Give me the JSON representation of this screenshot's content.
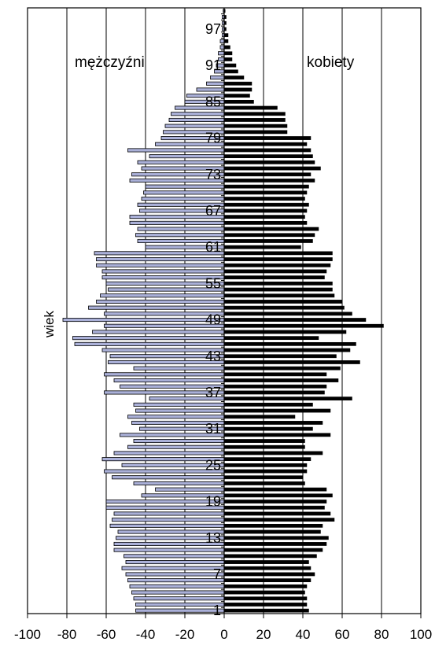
{
  "chart_data": {
    "type": "bar",
    "orientation": "horizontal",
    "title": "",
    "ylabel": "wiek",
    "xlim": [
      -100,
      100
    ],
    "ylim": [
      0,
      100
    ],
    "grid": true,
    "x_ticks": [
      -100,
      -80,
      -60,
      -40,
      -20,
      0,
      20,
      40,
      60,
      80,
      100
    ],
    "x_tick_labels": [
      "-100",
      "-80",
      "-60",
      "-40",
      "-20",
      "0",
      "20",
      "40",
      "60",
      "80",
      "100"
    ],
    "age_tick_labels": [
      "1",
      "7",
      "13",
      "19",
      "25",
      "31",
      "37",
      "43",
      "49",
      "55",
      "61",
      "67",
      "73",
      "79",
      "85",
      "91",
      "97"
    ],
    "ages": [
      1,
      2,
      3,
      4,
      5,
      6,
      7,
      8,
      9,
      10,
      11,
      12,
      13,
      14,
      15,
      16,
      17,
      18,
      19,
      20,
      21,
      22,
      23,
      24,
      25,
      26,
      27,
      28,
      29,
      30,
      31,
      32,
      33,
      34,
      35,
      36,
      37,
      38,
      39,
      40,
      41,
      42,
      43,
      44,
      45,
      46,
      47,
      48,
      49,
      50,
      51,
      52,
      53,
      54,
      55,
      56,
      57,
      58,
      59,
      60,
      61,
      62,
      63,
      64,
      65,
      66,
      67,
      68,
      69,
      70,
      71,
      72,
      73,
      74,
      75,
      76,
      77,
      78,
      79,
      80,
      81,
      82,
      83,
      84,
      85,
      86,
      87,
      88,
      89,
      90,
      91,
      92,
      93,
      94,
      95,
      96,
      97,
      98,
      99,
      100
    ],
    "series": [
      {
        "name": "mężczyźni",
        "color": "#aab0d8",
        "values": [
          -45,
          -45,
          -46,
          -47,
          -48,
          -49,
          -50,
          -52,
          -50,
          -51,
          -56,
          -56,
          -55,
          -54,
          -58,
          -57,
          -56,
          -60,
          -60,
          -42,
          -35,
          -46,
          -57,
          -61,
          -52,
          -62,
          -56,
          -49,
          -46,
          -53,
          -43,
          -47,
          -49,
          -45,
          -46,
          -38,
          -61,
          -53,
          -56,
          -61,
          -46,
          -59,
          -58,
          -62,
          -76,
          -77,
          -67,
          -61,
          -82,
          -61,
          -69,
          -65,
          -63,
          -59,
          -60,
          -62,
          -62,
          -65,
          -65,
          -66,
          -40,
          -44,
          -45,
          -44,
          -48,
          -48,
          -43,
          -44,
          -42,
          -41,
          -40,
          -48,
          -47,
          -42,
          -44,
          -38,
          -49,
          -35,
          -32,
          -31,
          -30,
          -28,
          -27,
          -25,
          -20,
          -19,
          -14,
          -9,
          -7,
          -5,
          -4,
          -3,
          -3,
          -2,
          -2,
          -1,
          -1,
          -1,
          -1,
          -0.5
        ]
      },
      {
        "name": "kobiety",
        "color": "#000000",
        "values": [
          43,
          42,
          42,
          41,
          42,
          44,
          46,
          44,
          43,
          47,
          50,
          52,
          53,
          49,
          50,
          56,
          54,
          51,
          52,
          55,
          52,
          41,
          40,
          42,
          42,
          44,
          50,
          41,
          41,
          54,
          45,
          50,
          36,
          54,
          45,
          65,
          51,
          52,
          58,
          52,
          59,
          69,
          57,
          64,
          67,
          48,
          62,
          81,
          72,
          65,
          61,
          60,
          56,
          55,
          55,
          51,
          52,
          54,
          55,
          55,
          39,
          45,
          46,
          48,
          42,
          41,
          42,
          43,
          41,
          42,
          43,
          46,
          44,
          49,
          46,
          45,
          44,
          42,
          44,
          32,
          32,
          31,
          31,
          27,
          15,
          13,
          14,
          14,
          10,
          7,
          6,
          4,
          4,
          3,
          2,
          2,
          1,
          1,
          1,
          0.5
        ]
      }
    ],
    "legend": [
      "mężczyźni",
      "kobiety"
    ]
  }
}
